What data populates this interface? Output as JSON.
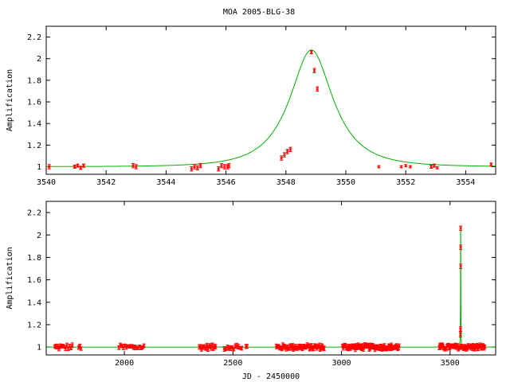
{
  "figure": {
    "title": "MOA 2005-BLG-38",
    "colors": {
      "model": "#00b000",
      "data": "#ff0000",
      "axes": "#000000"
    }
  },
  "chart_data": [
    {
      "type": "scatter",
      "panel": "top",
      "title": "MOA 2005-BLG-38",
      "xlabel": "",
      "ylabel": "Amplification",
      "xlim": [
        3540,
        3555
      ],
      "ylim": [
        0.93,
        2.3
      ],
      "xticks": [
        3540,
        3542,
        3544,
        3546,
        3548,
        3550,
        3552,
        3554
      ],
      "yticks": [
        1,
        1.2,
        1.4,
        1.6,
        1.8,
        2,
        2.2
      ],
      "model": {
        "t0": 3548.85,
        "u0": 0.53,
        "tE": 1.45
      },
      "series": [
        {
          "kind": "observations",
          "x": [
            3540.1,
            3540.95,
            3541.05,
            3541.15,
            3541.25,
            3542.9,
            3543.0,
            3544.85,
            3544.95,
            3545.05,
            3545.15,
            3545.75,
            3545.85,
            3545.95,
            3546.05,
            3546.1,
            3547.85,
            3547.95,
            3548.05,
            3548.15,
            3548.85,
            3548.95,
            3549.05,
            3551.1,
            3551.85,
            3552.0,
            3552.15,
            3552.85,
            3552.95,
            3553.05,
            3554.85
          ],
          "y": [
            1.0,
            1.0,
            1.01,
            0.99,
            1.01,
            1.01,
            1.0,
            0.98,
            1.0,
            0.99,
            1.01,
            0.98,
            1.01,
            1.0,
            1.0,
            1.01,
            1.08,
            1.11,
            1.14,
            1.16,
            2.06,
            1.89,
            1.72,
            1.0,
            1.0,
            1.01,
            1.0,
            1.0,
            1.01,
            0.99,
            1.02
          ],
          "yerr": [
            0.02,
            0.015,
            0.015,
            0.015,
            0.015,
            0.02,
            0.02,
            0.02,
            0.02,
            0.02,
            0.02,
            0.02,
            0.02,
            0.02,
            0.02,
            0.02,
            0.02,
            0.02,
            0.02,
            0.02,
            0.015,
            0.02,
            0.02,
            0.01,
            0.01,
            0.01,
            0.01,
            0.015,
            0.015,
            0.01,
            0.015
          ]
        }
      ]
    },
    {
      "type": "scatter",
      "panel": "bottom",
      "xlabel": "JD - 2450000",
      "ylabel": "Amplification",
      "xlim": [
        1640,
        3710
      ],
      "ylim": [
        0.93,
        2.3
      ],
      "xticks": [
        2000,
        2500,
        3000,
        3500
      ],
      "yticks": [
        1,
        1.2,
        1.4,
        1.6,
        1.8,
        2,
        2.2
      ],
      "model": {
        "t0": 3548.85,
        "u0": 0.53,
        "tE": 1.45
      },
      "series": [
        {
          "kind": "observations",
          "segments": [
            {
              "from": 1680,
              "to": 1760,
              "count": 14
            },
            {
              "from": 1790,
              "to": 1800,
              "count": 3
            },
            {
              "from": 1975,
              "to": 2090,
              "count": 18
            },
            {
              "from": 2345,
              "to": 2420,
              "count": 16
            },
            {
              "from": 2460,
              "to": 2540,
              "count": 12
            },
            {
              "from": 2560,
              "to": 2565,
              "count": 2
            },
            {
              "from": 2700,
              "to": 2920,
              "count": 60
            },
            {
              "from": 3005,
              "to": 3265,
              "count": 90
            },
            {
              "from": 3450,
              "to": 3660,
              "count": 70
            }
          ],
          "peak": {
            "x": [
              3547.9,
              3548.1,
              3548.85,
              3548.95,
              3549.05
            ],
            "y": [
              1.11,
              1.16,
              2.06,
              1.89,
              1.72
            ]
          }
        }
      ]
    }
  ]
}
